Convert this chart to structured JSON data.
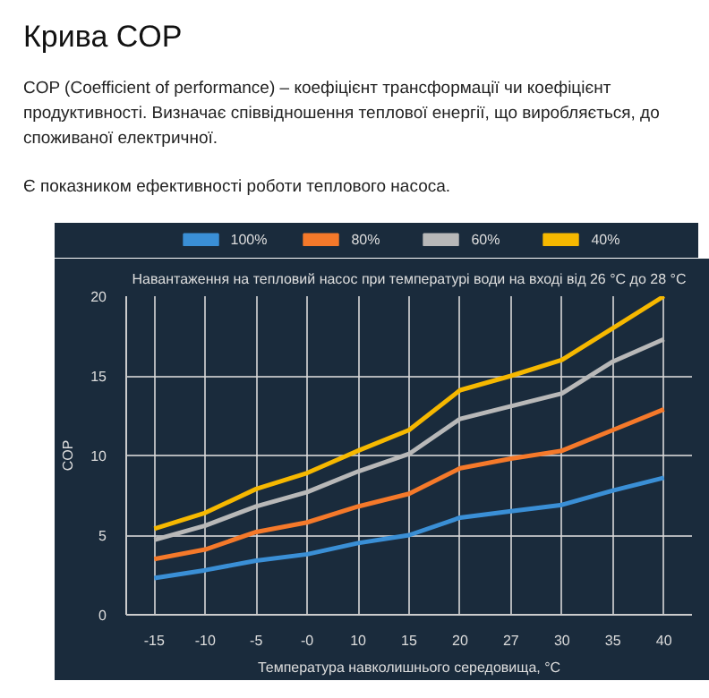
{
  "chart_data": {
    "type": "line",
    "title": "Крива COP",
    "annotations": [
      "COP (Coefficient of performance) – коефіцієнт трансформації чи коефіцієнт продуктивності. Визначає співвідношення теплової енергії, що виробляється, до споживаної електричної.",
      "Є показником ефективності роботи теплового насоса."
    ],
    "subtitle": "Навантаження на тепловий насос при температурі води на вході від 26 °C до 28 °C",
    "xlabel": "Температура навколишнього середовища, °C",
    "ylabel": "COP",
    "categories": [
      "-15",
      "-10",
      "-5",
      "-0",
      "10",
      "15",
      "20",
      "27",
      "30",
      "35",
      "40"
    ],
    "series": [
      {
        "name": "100%",
        "color": "#3a8fd6",
        "values": [
          2.3,
          2.8,
          3.4,
          3.8,
          4.5,
          5.0,
          6.1,
          6.5,
          6.9,
          7.8,
          8.6
        ]
      },
      {
        "name": "80%",
        "color": "#f5792a",
        "values": [
          3.5,
          4.1,
          5.2,
          5.8,
          6.8,
          7.6,
          9.2,
          9.8,
          10.3,
          11.6,
          12.9
        ]
      },
      {
        "name": "60%",
        "color": "#b8b8b8",
        "values": [
          4.7,
          5.6,
          6.8,
          7.7,
          9.0,
          10.1,
          12.3,
          13.1,
          13.9,
          15.9,
          17.3
        ]
      },
      {
        "name": "40%",
        "color": "#f6b800",
        "values": [
          5.4,
          6.4,
          7.9,
          8.9,
          10.3,
          11.6,
          14.1,
          15.0,
          16.0,
          18.0,
          20.0
        ]
      }
    ],
    "ylim": [
      0,
      20
    ],
    "yticks": [
      0,
      5,
      10,
      15,
      20
    ],
    "grid": true,
    "legend": "top"
  }
}
